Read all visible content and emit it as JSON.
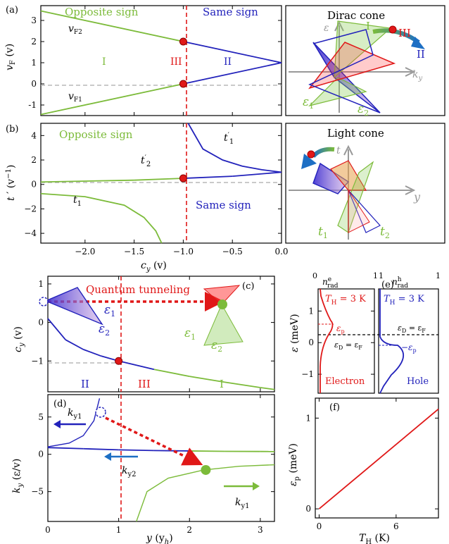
{
  "colors": {
    "green": "#7cbb3a",
    "blue": "#2222bb",
    "red": "#e01818",
    "teal": "#1d6fc4",
    "gray": "#999999"
  },
  "chart_data": [
    {
      "panel": "(a)",
      "type": "line",
      "xlabel": "c_y (v)",
      "ylabel": "v_F (v)",
      "xlim": [
        -2.45,
        0
      ],
      "ylim": [
        -1.5,
        3.7
      ],
      "yticks": [
        "-1",
        "0",
        "1",
        "2",
        "3"
      ],
      "series": [
        {
          "name": "v_F2",
          "x": [
            -2.45,
            -1.0,
            0
          ],
          "y": [
            3.45,
            2.0,
            1.0
          ]
        },
        {
          "name": "v_F1",
          "x": [
            -2.45,
            -1.0,
            0
          ],
          "y": [
            -1.45,
            0.0,
            1.0
          ]
        }
      ],
      "markers": [
        {
          "x": -1.0,
          "y": 2.0
        },
        {
          "x": -1.0,
          "y": 0.0
        }
      ],
      "vline": -1.0,
      "text": {
        "left": "Opposite sign",
        "right": "Same sign",
        "r1": "I",
        "r2": "III",
        "r3": "II",
        "vf2": "v",
        "vf2sub": "F2",
        "vf1": "v",
        "vf1sub": "F1"
      }
    },
    {
      "panel": "(b)",
      "type": "line",
      "xlabel": "c_y (v)",
      "ylabel": "t′ (v⁻¹)",
      "xlim": [
        -2.45,
        0
      ],
      "ylim": [
        -4.8,
        5
      ],
      "xticks": [
        "−2.0",
        "−1.5",
        "−1.0",
        "−0.5",
        "0.0"
      ],
      "yticks": [
        "−4",
        "−2",
        "0",
        "2",
        "4"
      ],
      "series": [
        {
          "name": "t′2",
          "x": [
            -2.45,
            -1.5,
            -1.0,
            -0.5,
            0
          ],
          "y": [
            0.2,
            0.35,
            0.5,
            0.67,
            1.0
          ]
        },
        {
          "name": "t′1 right",
          "x": [
            -0.95,
            -0.8,
            -0.6,
            -0.4,
            -0.2,
            0
          ],
          "y": [
            5,
            2.9,
            2.0,
            1.5,
            1.2,
            1.0
          ]
        },
        {
          "name": "t1 left",
          "x": [
            -2.45,
            -2.0,
            -1.6,
            -1.4,
            -1.28,
            -1.22
          ],
          "y": [
            -0.75,
            -1.0,
            -1.7,
            -2.7,
            -3.8,
            -4.8
          ]
        }
      ],
      "markers": [
        {
          "x": -1.0,
          "y": 0.5
        }
      ],
      "vline": -1.0,
      "text": {
        "left": "Opposite sign",
        "right": "Same sign",
        "t1r": "t",
        "t1rsup": "′",
        "t1rsub": "1",
        "t2": "t",
        "t2sup": "′",
        "t2sub": "2",
        "t1l": "t",
        "t1lsub": "1"
      }
    },
    {
      "panel": "(c)",
      "type": "line",
      "xlabel": "",
      "ylabel": "c_y (v)",
      "xlim": [
        0,
        3.2
      ],
      "ylim": [
        -1.8,
        1.2
      ],
      "yticks": [
        "−1",
        "0",
        "1"
      ],
      "series": [
        {
          "name": "c_y",
          "x": [
            0,
            0.25,
            0.5,
            0.75,
            1,
            1.5,
            2,
            2.5,
            3,
            3.2
          ],
          "y": [
            0.1,
            -0.45,
            -0.7,
            -0.87,
            -1.0,
            -1.22,
            -1.4,
            -1.55,
            -1.69,
            -1.74
          ]
        }
      ],
      "markers": [
        {
          "x": 1.0,
          "y": -1.0
        }
      ],
      "vline": 1.0,
      "text": {
        "tunnel": "Quantum tunneling",
        "r2": "II",
        "r3": "III",
        "r1": "I",
        "e1a": "ε",
        "e1asub": "1",
        "e2a": "ε",
        "e2asub": "2",
        "e1b": "ε",
        "e1bsub": "1",
        "e2b": "ε",
        "e2bsub": "2"
      }
    },
    {
      "panel": "(d)",
      "type": "line",
      "xlabel": "y (y_h)",
      "ylabel": "k_y (ε/v)",
      "xlim": [
        0,
        3.2
      ],
      "ylim": [
        -9,
        8
      ],
      "xticks": [
        "0",
        "1",
        "2",
        "3"
      ],
      "yticks": [
        "−5",
        "0",
        "5"
      ],
      "series": [
        {
          "name": "k_y2",
          "x": [
            0,
            0.5,
            1,
            1.5,
            2,
            2.5,
            3,
            3.2
          ],
          "y": [
            0.9,
            0.75,
            0.6,
            0.5,
            0.45,
            0.4,
            0.38,
            0.37
          ]
        },
        {
          "name": "k_y1 blue",
          "x": [
            0,
            0.3,
            0.5,
            0.65,
            0.73
          ],
          "y": [
            1.0,
            1.5,
            2.5,
            4.5,
            7.5
          ]
        },
        {
          "name": "k_y1 green",
          "x": [
            1.25,
            1.4,
            1.7,
            2.2,
            2.7,
            3.2
          ],
          "y": [
            -9,
            -5,
            -3.2,
            -2.1,
            -1.6,
            -1.4
          ]
        }
      ],
      "markers": [
        {
          "x": 2.23,
          "y": -2.1
        }
      ],
      "vline": 1.0,
      "text": {
        "ky1a": "k",
        "ky1asub": "y1",
        "ky2": "k",
        "ky2sub": "y2",
        "ky1b": "k",
        "ky1bsub": "y1"
      }
    },
    {
      "panel": "(e)",
      "type": "line",
      "xlabel": "",
      "ylabel": "ε (meV)",
      "ylim": [
        -1.6,
        1.7
      ],
      "yticks": [
        "−1",
        "0",
        "1"
      ],
      "text": {
        "nre": "n",
        "nresup": "e",
        "nresub": "rad",
        "nrh": "n",
        "nrhsup": "h",
        "nrhsub": "rad",
        "th1": "T",
        "th1sub": "H",
        "th1val": " = 3 K",
        "th2": "T",
        "th2sub": "H",
        "th2val": " = 3 K",
        "ep": "ε",
        "epsub": "p",
        "mep": "−ε",
        "mepsub": "p",
        "edf1": "ε",
        "edf1sub": "D",
        "edf1mid": " = ε",
        "edf1sub2": "F",
        "edf2": "ε",
        "edf2sub": "D",
        "edf2mid": " = ε",
        "edf2sub2": "F",
        "electron": "Electron",
        "hole": "Hole",
        "x0a": "0",
        "x1a": "1",
        "x0b": "1",
        "x1b": "1"
      }
    },
    {
      "panel": "(f)",
      "type": "line",
      "xlabel": "T_H (K)",
      "ylabel": "ε_p (meV)",
      "xlim": [
        -0.3,
        9.3
      ],
      "ylim": [
        -0.1,
        1.22
      ],
      "xticks": [
        "0",
        "6"
      ],
      "yticks": [
        "0",
        "1"
      ],
      "series": [
        {
          "name": "ε_p",
          "x": [
            0,
            9.3
          ],
          "y": [
            0,
            1.1
          ]
        }
      ]
    }
  ],
  "panels": {
    "a": "(a)",
    "b": "(b)",
    "c": "(c)",
    "d": "(d)",
    "e": "(e)",
    "f": "(f)"
  },
  "insets": {
    "dirac": "Dirac cone",
    "light": "Light cone",
    "di": "I",
    "diii": "III",
    "dii": "II",
    "deps": "ε",
    "dky": "k",
    "dkysub": "y",
    "de1": "ε",
    "de1sub": "1",
    "de2": "ε",
    "de2sub": "2",
    "lt": "t",
    "ly": "y",
    "lt1": "t",
    "lt1sub": "1",
    "lt2": "t",
    "lt2sub": "2"
  },
  "axis_labels": {
    "vf": "v",
    "vfsub": "F",
    "vfunit": " (v)",
    "tp": "t",
    "tpunit": " ′ (v",
    "tpsup": "−1",
    "tpclose": ")",
    "cy": "c",
    "cysub": "y",
    "cyunit": " (v)",
    "ky": "k",
    "kysub": "y",
    "kyunit": " (ε/v)",
    "yy": "y",
    "yyunit": " (y",
    "yysub": "h",
    "yyclose": ")",
    "eps": "ε",
    "epsunit": " (meV)",
    "epp": "ε",
    "eppsub": "p",
    "eppunit": " (meV)",
    "th": "T",
    "thsub": "H",
    "thunit": " (K)"
  }
}
